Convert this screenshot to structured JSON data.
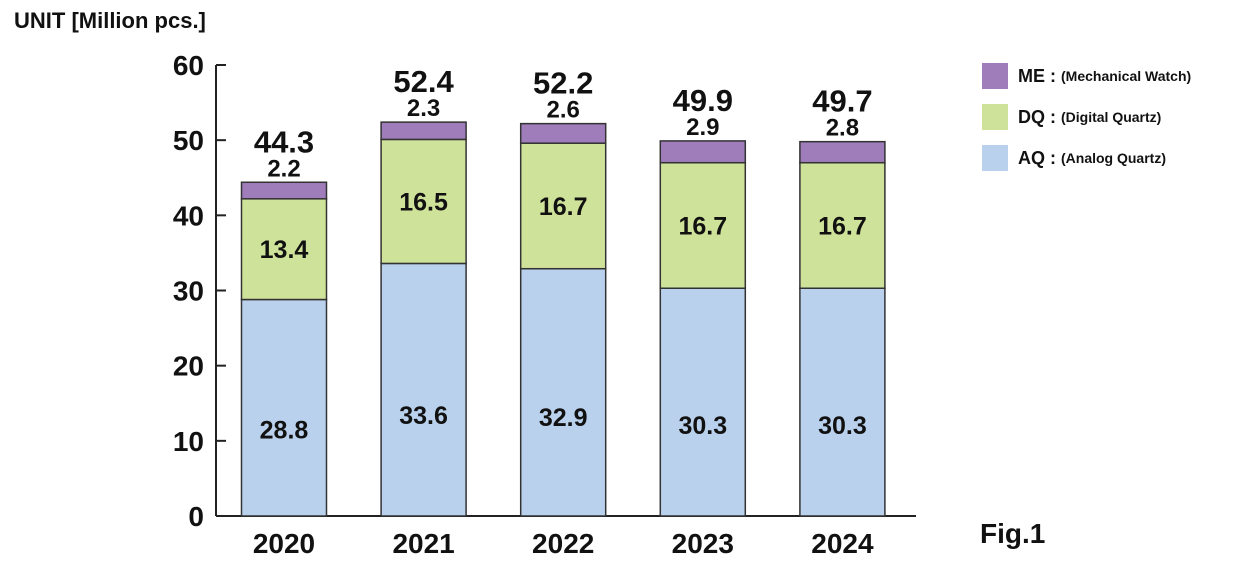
{
  "unit_label": "UNIT [Million pcs.]",
  "figure_label": "Fig.1",
  "legend": [
    {
      "code": "ME",
      "separator": ":",
      "description": "(Mechanical Watch)",
      "color": "#9f7dbb"
    },
    {
      "code": "DQ",
      "separator": ":",
      "description": "(Digital Quartz)",
      "color": "#cfe29a"
    },
    {
      "code": "AQ",
      "separator": ":",
      "description": "(Analog Quartz)",
      "color": "#b9d1ec"
    }
  ],
  "chart_data": {
    "type": "bar",
    "stacked": true,
    "title": "",
    "xlabel": "",
    "ylabel": "UNIT [Million pcs.]",
    "ylim": [
      0,
      60
    ],
    "yticks": [
      0,
      10,
      20,
      30,
      40,
      50,
      60
    ],
    "categories": [
      "2020",
      "2021",
      "2022",
      "2023",
      "2024"
    ],
    "series": [
      {
        "name": "AQ",
        "color": "#b9d1ec",
        "values": [
          28.8,
          33.6,
          32.9,
          30.3,
          30.3
        ],
        "labels": [
          "28.8",
          "33.6",
          "32.9",
          "30.3",
          "30.3"
        ]
      },
      {
        "name": "DQ",
        "color": "#cfe29a",
        "values": [
          13.4,
          16.5,
          16.7,
          16.7,
          16.7
        ],
        "labels": [
          "13.4",
          "16.5",
          "16.7",
          "16.7",
          "16.7"
        ]
      },
      {
        "name": "ME",
        "color": "#9f7dbb",
        "values": [
          2.2,
          2.3,
          2.6,
          2.9,
          2.8
        ],
        "labels": [
          "2.2",
          "2.3",
          "2.6",
          "2.9",
          "2.8"
        ]
      }
    ],
    "totals": [
      44.3,
      52.4,
      52.2,
      49.9,
      49.7
    ],
    "total_labels": [
      "44.3",
      "52.4",
      "52.2",
      "49.9",
      "49.7"
    ]
  }
}
